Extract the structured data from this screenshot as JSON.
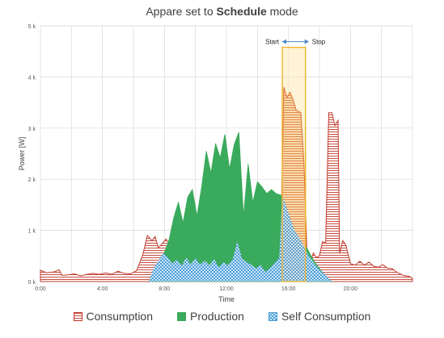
{
  "title": {
    "prefix": "Appare set to ",
    "mode": "Schedule",
    "suffix": " mode"
  },
  "colors": {
    "consumption_stroke": "#c0392b",
    "consumption_fill": "#e8b0ac",
    "production": "#3aaa5c",
    "self_stroke": "#4a9fd8",
    "self_fill": "#cfe6f7",
    "schedule_fill": "#fde9b4",
    "schedule_stroke": "#f0b429",
    "arrow": "#4a86c5",
    "grid": "#d9d9d9",
    "axis_text": "#595959"
  },
  "annotations": {
    "start_label": "Start",
    "stop_label": "Stop",
    "schedule_start_hour": 15.6,
    "schedule_end_hour": 17.1,
    "schedule_top_value": 4580
  },
  "chart_data": {
    "type": "area",
    "title": "Appare set to Schedule mode",
    "xlabel": "Time",
    "ylabel": "Power [W]",
    "xlim": [
      0,
      24
    ],
    "ylim": [
      0,
      5000
    ],
    "x_ticks": [
      {
        "value": 0,
        "label": "0:00"
      },
      {
        "value": 4,
        "label": "4:00"
      },
      {
        "value": 8,
        "label": "8:00"
      },
      {
        "value": 12,
        "label": "12:00"
      },
      {
        "value": 16,
        "label": "16:00"
      },
      {
        "value": 20,
        "label": "20:00"
      }
    ],
    "y_ticks": [
      {
        "value": 0,
        "label": "0 k"
      },
      {
        "value": 1000,
        "label": "1 k"
      },
      {
        "value": 2000,
        "label": "2 k"
      },
      {
        "value": 3000,
        "label": "3 k"
      },
      {
        "value": 4000,
        "label": "4 k"
      },
      {
        "value": 5000,
        "label": "5 k"
      }
    ],
    "grid": true,
    "legend_position": "bottom",
    "series": [
      {
        "name": "Consumption",
        "points": [
          [
            0,
            220
          ],
          [
            0.4,
            170
          ],
          [
            0.9,
            190
          ],
          [
            1.2,
            230
          ],
          [
            1.4,
            120
          ],
          [
            1.8,
            130
          ],
          [
            2.2,
            150
          ],
          [
            2.6,
            110
          ],
          [
            3.0,
            140
          ],
          [
            3.4,
            160
          ],
          [
            3.8,
            140
          ],
          [
            4.2,
            170
          ],
          [
            4.6,
            140
          ],
          [
            5.0,
            200
          ],
          [
            5.4,
            160
          ],
          [
            5.8,
            150
          ],
          [
            6.2,
            210
          ],
          [
            6.6,
            520
          ],
          [
            6.9,
            900
          ],
          [
            7.2,
            800
          ],
          [
            7.4,
            880
          ],
          [
            7.6,
            660
          ],
          [
            7.8,
            720
          ],
          [
            8.1,
            830
          ],
          [
            8.4,
            700
          ],
          [
            8.7,
            850
          ],
          [
            9.0,
            720
          ],
          [
            9.3,
            760
          ],
          [
            9.7,
            820
          ],
          [
            10.0,
            620
          ],
          [
            10.3,
            650
          ],
          [
            10.6,
            600
          ],
          [
            10.9,
            520
          ],
          [
            11.2,
            590
          ],
          [
            11.5,
            420
          ],
          [
            11.8,
            540
          ],
          [
            12.1,
            500
          ],
          [
            12.4,
            600
          ],
          [
            12.7,
            470
          ],
          [
            13.0,
            430
          ],
          [
            13.3,
            480
          ],
          [
            13.6,
            370
          ],
          [
            13.9,
            420
          ],
          [
            14.2,
            330
          ],
          [
            14.5,
            380
          ],
          [
            14.8,
            330
          ],
          [
            15.1,
            460
          ],
          [
            15.5,
            560
          ],
          [
            15.7,
            3800
          ],
          [
            15.9,
            3600
          ],
          [
            16.1,
            3700
          ],
          [
            16.3,
            3550
          ],
          [
            16.5,
            3350
          ],
          [
            16.8,
            3300
          ],
          [
            17.0,
            2300
          ],
          [
            17.2,
            520
          ],
          [
            17.4,
            350
          ],
          [
            17.6,
            560
          ],
          [
            17.8,
            470
          ],
          [
            18.0,
            500
          ],
          [
            18.2,
            780
          ],
          [
            18.4,
            760
          ],
          [
            18.6,
            3300
          ],
          [
            18.8,
            3300
          ],
          [
            19.0,
            3050
          ],
          [
            19.2,
            3150
          ],
          [
            19.3,
            550
          ],
          [
            19.5,
            800
          ],
          [
            19.7,
            720
          ],
          [
            20.0,
            350
          ],
          [
            20.3,
            320
          ],
          [
            20.6,
            400
          ],
          [
            20.9,
            320
          ],
          [
            21.2,
            380
          ],
          [
            21.5,
            300
          ],
          [
            21.8,
            280
          ],
          [
            22.1,
            330
          ],
          [
            22.4,
            260
          ],
          [
            22.7,
            250
          ],
          [
            23.0,
            180
          ],
          [
            23.4,
            120
          ],
          [
            23.8,
            100
          ],
          [
            24,
            60
          ]
        ]
      },
      {
        "name": "Production",
        "points": [
          [
            7.0,
            0
          ],
          [
            7.4,
            280
          ],
          [
            7.7,
            430
          ],
          [
            8.0,
            570
          ],
          [
            8.3,
            820
          ],
          [
            8.6,
            1250
          ],
          [
            8.9,
            1550
          ],
          [
            9.2,
            1150
          ],
          [
            9.5,
            1650
          ],
          [
            9.8,
            1800
          ],
          [
            10.1,
            1280
          ],
          [
            10.4,
            1850
          ],
          [
            10.7,
            2550
          ],
          [
            11.0,
            2120
          ],
          [
            11.3,
            2700
          ],
          [
            11.6,
            2420
          ],
          [
            11.9,
            2880
          ],
          [
            12.2,
            2200
          ],
          [
            12.5,
            2680
          ],
          [
            12.8,
            2920
          ],
          [
            13.1,
            1280
          ],
          [
            13.4,
            2300
          ],
          [
            13.7,
            1550
          ],
          [
            14.0,
            1950
          ],
          [
            14.3,
            1850
          ],
          [
            14.6,
            1720
          ],
          [
            14.9,
            1800
          ],
          [
            15.2,
            1720
          ],
          [
            15.6,
            1680
          ],
          [
            16.0,
            1350
          ],
          [
            16.4,
            1050
          ],
          [
            16.8,
            800
          ],
          [
            17.2,
            650
          ],
          [
            17.6,
            420
          ],
          [
            18.0,
            250
          ],
          [
            18.4,
            100
          ],
          [
            18.8,
            0
          ]
        ]
      },
      {
        "name": "Self Consumption",
        "points": [
          [
            7.0,
            0
          ],
          [
            7.3,
            260
          ],
          [
            7.6,
            400
          ],
          [
            7.9,
            560
          ],
          [
            8.2,
            480
          ],
          [
            8.5,
            350
          ],
          [
            8.8,
            430
          ],
          [
            9.1,
            310
          ],
          [
            9.4,
            470
          ],
          [
            9.7,
            340
          ],
          [
            10.0,
            460
          ],
          [
            10.3,
            330
          ],
          [
            10.6,
            410
          ],
          [
            10.9,
            320
          ],
          [
            11.2,
            440
          ],
          [
            11.5,
            280
          ],
          [
            11.8,
            380
          ],
          [
            12.1,
            320
          ],
          [
            12.4,
            430
          ],
          [
            12.7,
            790
          ],
          [
            13.0,
            450
          ],
          [
            13.3,
            380
          ],
          [
            13.6,
            330
          ],
          [
            13.9,
            260
          ],
          [
            14.2,
            330
          ],
          [
            14.5,
            190
          ],
          [
            14.8,
            260
          ],
          [
            15.1,
            360
          ],
          [
            15.4,
            460
          ],
          [
            15.6,
            1680
          ],
          [
            16.0,
            1350
          ],
          [
            16.4,
            1000
          ],
          [
            16.8,
            800
          ],
          [
            17.2,
            560
          ],
          [
            17.6,
            380
          ],
          [
            18.0,
            230
          ],
          [
            18.4,
            120
          ],
          [
            18.8,
            0
          ]
        ]
      }
    ]
  },
  "legend": [
    {
      "label": "Consumption",
      "key": "consumption"
    },
    {
      "label": "Production",
      "key": "production"
    },
    {
      "label": "Self Consumption",
      "key": "self"
    }
  ]
}
